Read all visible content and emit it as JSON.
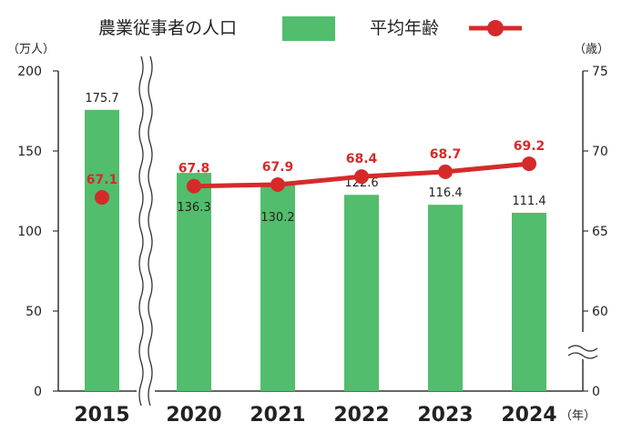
{
  "chart_data": {
    "type": "bar+line",
    "categories": [
      "2015",
      "2020",
      "2021",
      "2022",
      "2023",
      "2024"
    ],
    "x_unit": "（年）",
    "series": [
      {
        "name": "農業従事者の人口",
        "type": "bar",
        "axis": "left",
        "color": "#52bd6c",
        "values": [
          175.7,
          136.3,
          130.2,
          122.6,
          116.4,
          111.4
        ],
        "labels": [
          "175.7",
          "136.3",
          "130.2",
          "122.6",
          "116.4",
          "111.4"
        ]
      },
      {
        "name": "平均年齢",
        "type": "line",
        "axis": "right",
        "color": "#d62a2a",
        "values": [
          67.1,
          67.8,
          67.9,
          68.4,
          68.7,
          69.2
        ],
        "labels": [
          "67.1",
          "67.8",
          "67.9",
          "68.4",
          "68.7",
          "69.2"
        ]
      }
    ],
    "left_axis": {
      "unit": "（万人）",
      "range": [
        0,
        200
      ],
      "ticks": [
        "0",
        "50",
        "100",
        "150",
        "200"
      ],
      "tick_values": [
        0,
        50,
        100,
        150,
        200
      ]
    },
    "right_axis": {
      "unit": "（歳）",
      "range": [
        55,
        75
      ],
      "axis_break": true,
      "ticks": [
        "0",
        "60",
        "65",
        "70",
        "75"
      ],
      "tick_values": [
        55,
        60,
        65,
        70,
        75
      ]
    },
    "x_axis_break_between": [
      "2015",
      "2020"
    ],
    "line_connects_from": "2020",
    "legend_position": "top",
    "grid": false
  }
}
